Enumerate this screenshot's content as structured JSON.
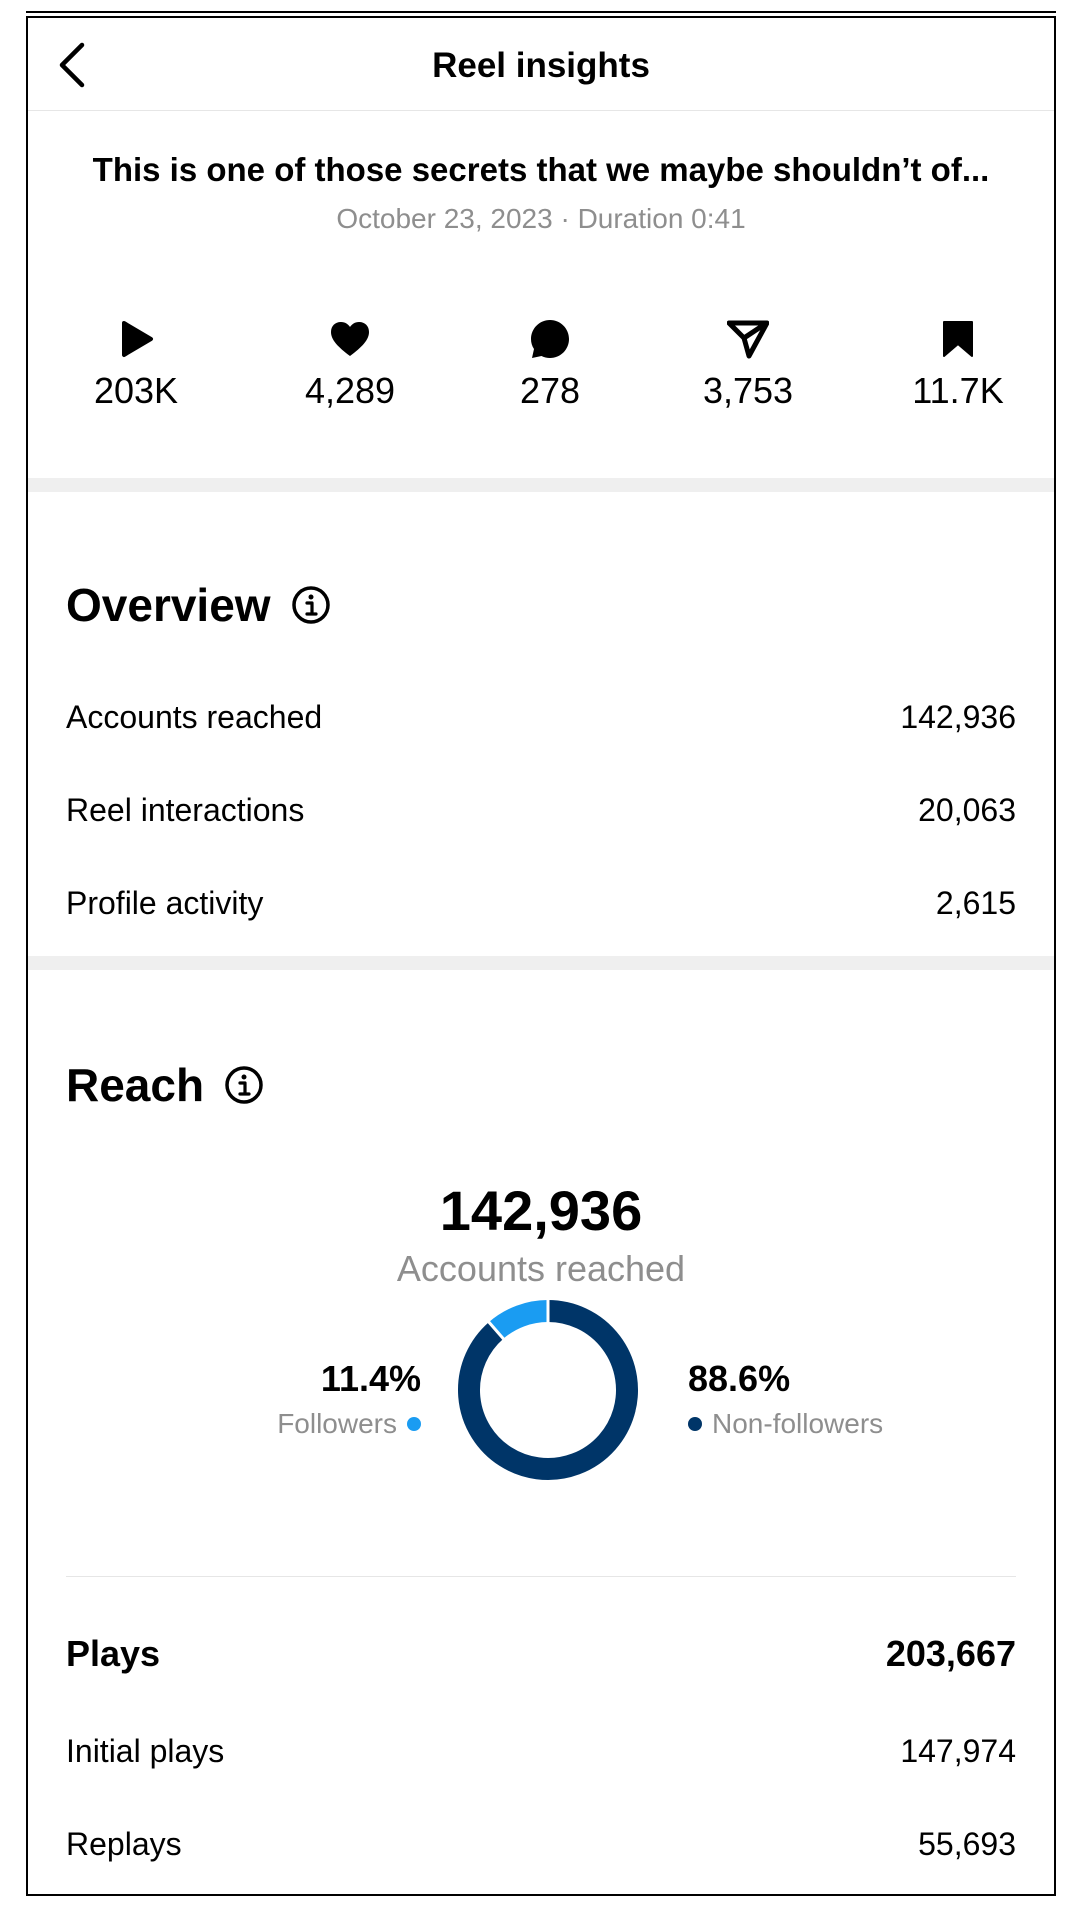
{
  "header": {
    "title": "Reel insights"
  },
  "reel": {
    "caption": "This is one of those secrets that we maybe shouldn’t of...",
    "meta": "October 23, 2023 · Duration 0:41"
  },
  "stats": [
    {
      "icon": "play-icon",
      "value": "203K"
    },
    {
      "icon": "heart-icon",
      "value": "4,289"
    },
    {
      "icon": "comment-icon",
      "value": "278"
    },
    {
      "icon": "share-icon",
      "value": "3,753"
    },
    {
      "icon": "bookmark-icon",
      "value": "11.7K"
    }
  ],
  "overview": {
    "title": "Overview",
    "rows": [
      {
        "label": "Accounts reached",
        "value": "142,936"
      },
      {
        "label": "Reel interactions",
        "value": "20,063"
      },
      {
        "label": "Profile activity",
        "value": "2,615"
      }
    ]
  },
  "reach": {
    "title": "Reach",
    "total": "142,936",
    "total_label": "Accounts reached",
    "followers": {
      "pct": "11.4%",
      "label": "Followers",
      "fraction": 0.114,
      "color": "#1a9cf2"
    },
    "non_followers": {
      "pct": "88.6%",
      "label": "Non-followers",
      "fraction": 0.886,
      "color": "#003568"
    }
  },
  "plays": {
    "label": "Plays",
    "value": "203,667",
    "rows": [
      {
        "label": "Initial plays",
        "value": "147,974"
      },
      {
        "label": "Replays",
        "value": "55,693"
      }
    ]
  }
}
